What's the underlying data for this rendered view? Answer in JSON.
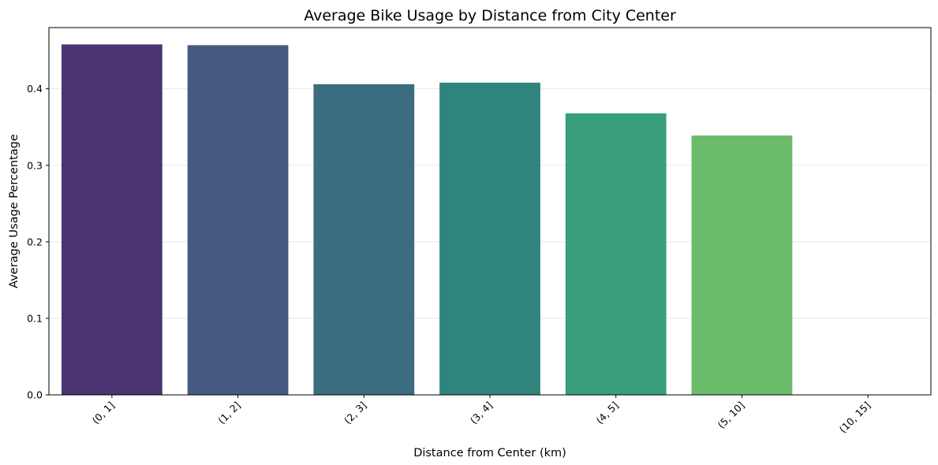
{
  "chart_data": {
    "type": "bar",
    "title": "Average Bike Usage by Distance from City Center",
    "xlabel": "Distance from Center (km)",
    "ylabel": "Average Usage Percentage",
    "categories": [
      "(0, 1]",
      "(1, 2]",
      "(2, 3]",
      "(3, 4]",
      "(4, 5]",
      "(5, 10]",
      "(10, 15]"
    ],
    "values": [
      0.458,
      0.457,
      0.406,
      0.408,
      0.368,
      0.339,
      0.0
    ],
    "colors": [
      "#4a3572",
      "#455a81",
      "#3b6c7f",
      "#2f857d",
      "#379e79",
      "#6abc6b",
      "#a7d45a"
    ],
    "ylim": [
      0,
      0.48
    ],
    "yticks": [
      "0.0",
      "0.1",
      "0.2",
      "0.3",
      "0.4"
    ],
    "grid": "y",
    "legend": "none"
  }
}
